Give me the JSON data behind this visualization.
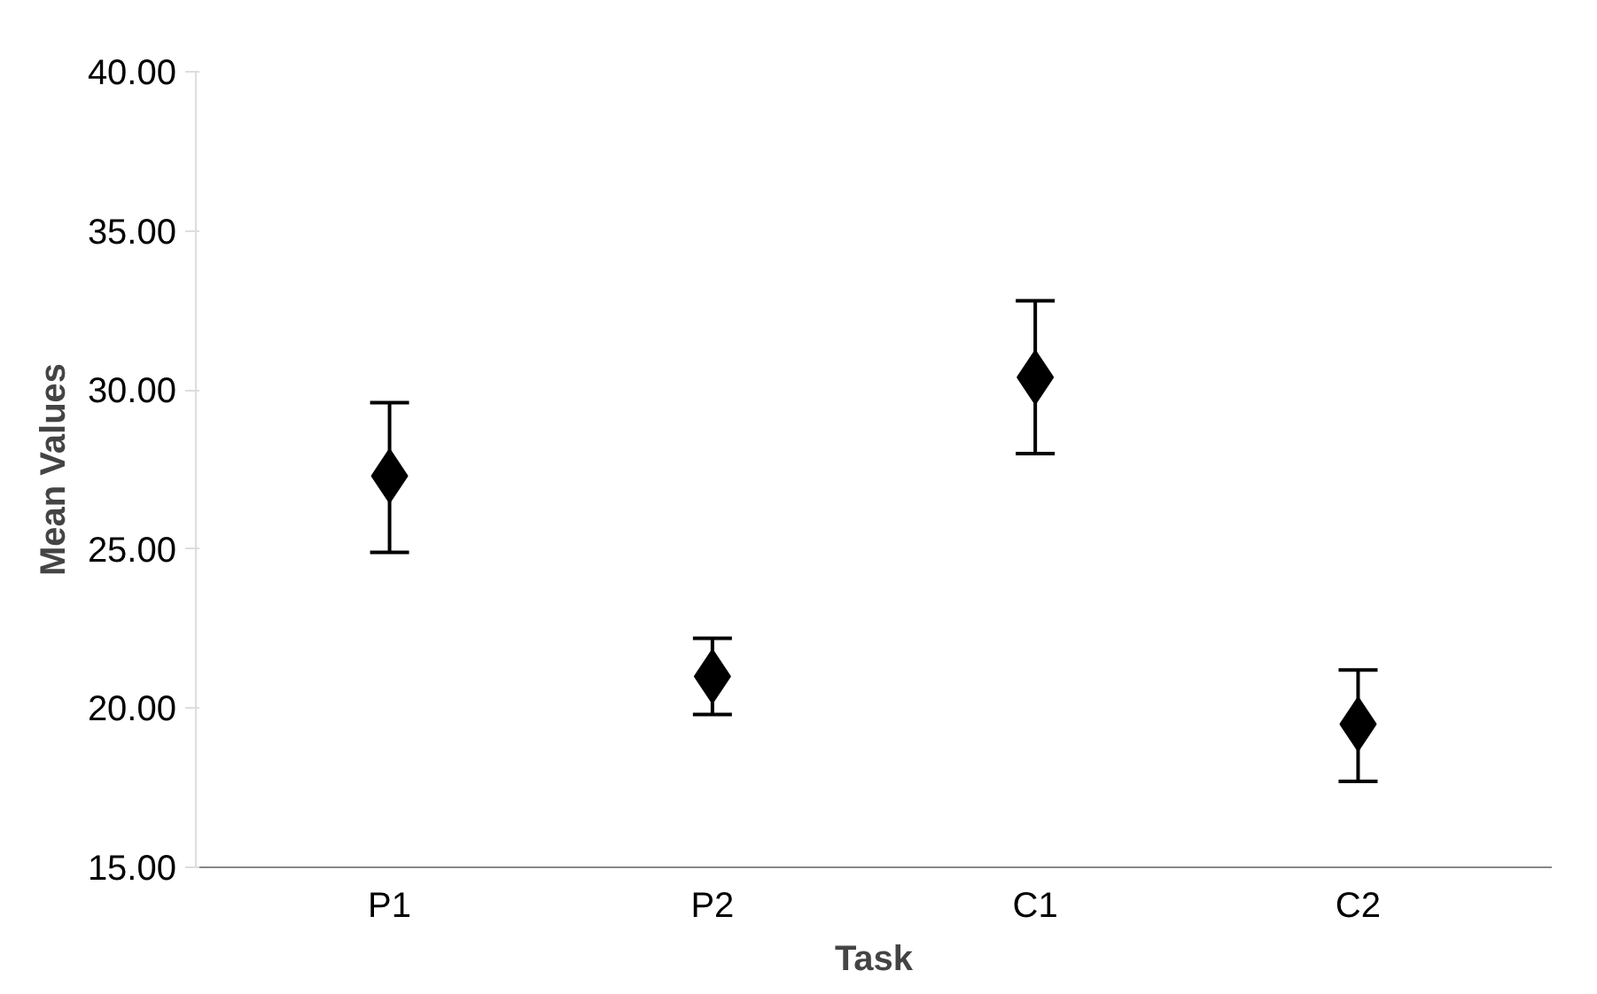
{
  "chart_data": {
    "type": "scatter",
    "xlabel": "Task",
    "ylabel": "Mean Values",
    "categories": [
      "P1",
      "P2",
      "C1",
      "C2"
    ],
    "values": [
      27.3,
      21.0,
      30.4,
      19.5
    ],
    "errors": [
      [
        24.9,
        29.6
      ],
      [
        19.8,
        22.2
      ],
      [
        28.0,
        32.8
      ],
      [
        17.7,
        21.2
      ]
    ],
    "color": "#000000",
    "marker": "diamond",
    "grid": false,
    "ylim": [
      15,
      40
    ],
    "yticks": [
      {
        "value": 15,
        "label": "15.00"
      },
      {
        "value": 20,
        "label": "20.00"
      },
      {
        "value": 25,
        "label": "25.00"
      },
      {
        "value": 30,
        "label": "30.00"
      },
      {
        "value": 35,
        "label": "35.00"
      },
      {
        "value": 40,
        "label": "40.00"
      }
    ]
  }
}
